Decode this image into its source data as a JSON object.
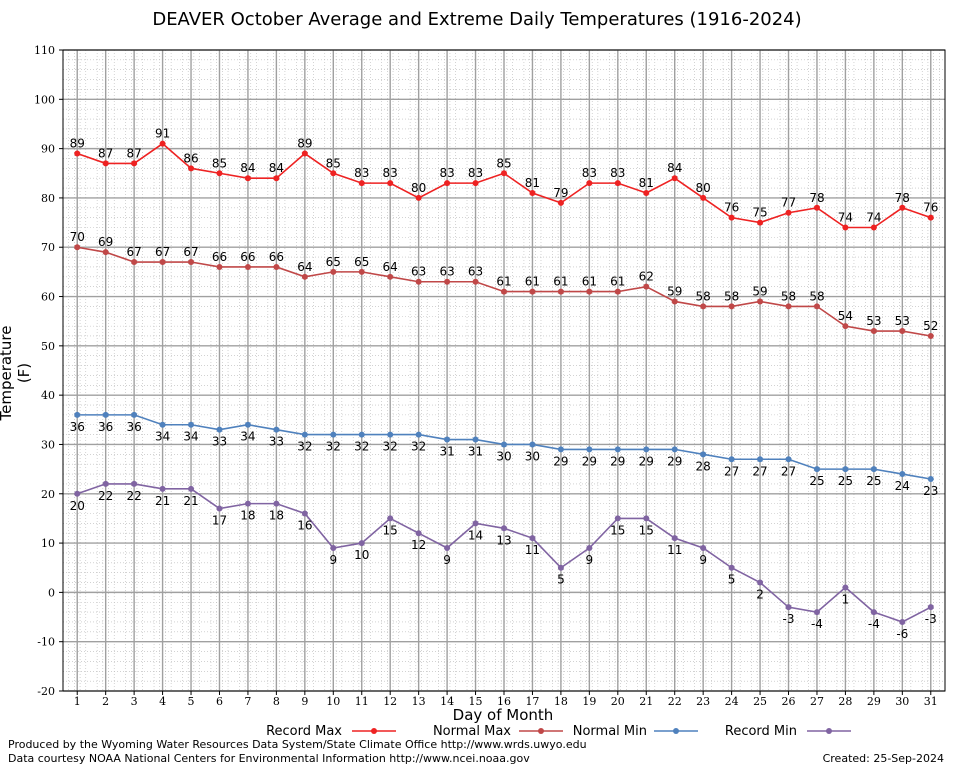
{
  "title": "DEAVER October Average and Extreme Daily Temperatures (1916-2024)",
  "footer": {
    "line1": "Produced by the Wyoming Water Resources Data System/State Climate Office http://www.wrds.uwyo.edu",
    "line2": "Data courtesy NOAA National Centers for Environmental Information http://www.ncei.noaa.gov",
    "created": "Created:  25-Sep-2024"
  },
  "chart_data": {
    "type": "line",
    "title": "DEAVER October Average and Extreme Daily Temperatures (1916-2024)",
    "xlabel": "Day of Month",
    "ylabel": "Temperature (F)",
    "x": [
      1,
      2,
      3,
      4,
      5,
      6,
      7,
      8,
      9,
      10,
      11,
      12,
      13,
      14,
      15,
      16,
      17,
      18,
      19,
      20,
      21,
      22,
      23,
      24,
      25,
      26,
      27,
      28,
      29,
      30,
      31
    ],
    "xlim": [
      0.5,
      31.5
    ],
    "ylim": [
      -20,
      110
    ],
    "yticks": [
      -20,
      -10,
      0,
      10,
      20,
      30,
      40,
      50,
      60,
      70,
      80,
      90,
      100,
      110
    ],
    "grid": true,
    "legend_position": "bottom",
    "series": [
      {
        "name": "Record Max",
        "color": "#ee2222",
        "marker": "circle",
        "values": [
          89,
          87,
          87,
          91,
          86,
          85,
          84,
          84,
          89,
          85,
          83,
          83,
          80,
          83,
          83,
          85,
          81,
          79,
          83,
          83,
          81,
          84,
          80,
          76,
          75,
          77,
          78,
          74,
          74,
          78,
          76
        ]
      },
      {
        "name": "Normal Max",
        "color": "#c04848",
        "marker": "circle",
        "values": [
          70,
          69,
          67,
          67,
          67,
          66,
          66,
          66,
          64,
          65,
          65,
          64,
          63,
          63,
          63,
          61,
          61,
          61,
          61,
          61,
          62,
          59,
          58,
          58,
          59,
          58,
          58,
          54,
          53,
          53,
          52
        ]
      },
      {
        "name": "Normal Min",
        "color": "#4f81bd",
        "marker": "circle",
        "values": [
          36,
          36,
          36,
          34,
          34,
          33,
          34,
          33,
          32,
          32,
          32,
          32,
          32,
          31,
          31,
          30,
          30,
          29,
          29,
          29,
          29,
          29,
          28,
          27,
          27,
          27,
          25,
          25,
          25,
          24,
          23
        ]
      },
      {
        "name": "Record Min",
        "color": "#8064a2",
        "marker": "circle",
        "values": [
          20,
          22,
          22,
          21,
          21,
          17,
          18,
          18,
          16,
          9,
          10,
          15,
          12,
          9,
          14,
          13,
          11,
          5,
          9,
          15,
          15,
          11,
          9,
          5,
          2,
          -3,
          -4,
          1,
          -4,
          -6,
          -3
        ]
      }
    ]
  }
}
